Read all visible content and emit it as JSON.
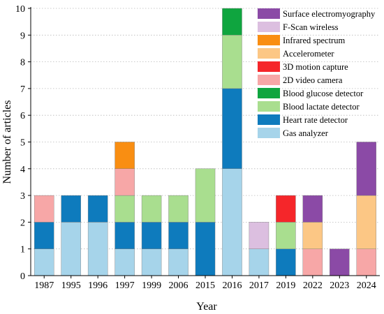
{
  "chart_data": {
    "type": "bar",
    "stacked": true,
    "xlabel": "Year",
    "ylabel": "Number of articles",
    "ylim": [
      0,
      10
    ],
    "yticks": [
      0,
      1,
      2,
      3,
      4,
      5,
      6,
      7,
      8,
      9,
      10
    ],
    "grid": "horizontal-dotted",
    "legend_position": "top-right",
    "categories": [
      "1987",
      "1995",
      "1996",
      "1997",
      "1999",
      "2006",
      "2015",
      "2016",
      "2017",
      "2019",
      "2022",
      "2023",
      "2024"
    ],
    "series": [
      {
        "name": "Gas analyzer",
        "color": "#A6D4EA",
        "values": [
          1,
          2,
          2,
          1,
          1,
          1,
          0,
          4,
          1,
          0,
          0,
          0,
          0
        ]
      },
      {
        "name": "Heart rate detector",
        "color": "#0E7BBD",
        "values": [
          1,
          1,
          1,
          1,
          1,
          1,
          2,
          3,
          0,
          1,
          0,
          0,
          0
        ]
      },
      {
        "name": "Blood lactate detector",
        "color": "#A9DE8F",
        "values": [
          0,
          0,
          0,
          1,
          1,
          1,
          2,
          2,
          0,
          1,
          0,
          0,
          0
        ]
      },
      {
        "name": "Blood glucose detector",
        "color": "#0FA53F",
        "values": [
          0,
          0,
          0,
          0,
          0,
          0,
          0,
          1,
          0,
          0,
          0,
          0,
          0
        ]
      },
      {
        "name": "2D video camera",
        "color": "#F7A7A7",
        "values": [
          1,
          0,
          0,
          1,
          0,
          0,
          0,
          0,
          0,
          0,
          1,
          0,
          1
        ]
      },
      {
        "name": "3D motion capture",
        "color": "#F5262A",
        "values": [
          0,
          0,
          0,
          0,
          0,
          0,
          0,
          0,
          0,
          1,
          0,
          0,
          0
        ]
      },
      {
        "name": "Accelerometer",
        "color": "#FCC785",
        "values": [
          0,
          0,
          0,
          0,
          0,
          0,
          0,
          0,
          0,
          0,
          1,
          0,
          2
        ]
      },
      {
        "name": "Infrared spectrum",
        "color": "#F98E12",
        "values": [
          0,
          0,
          0,
          1,
          0,
          0,
          0,
          0,
          0,
          0,
          0,
          0,
          0
        ]
      },
      {
        "name": "F-Scan wireless",
        "color": "#DCBFE0",
        "values": [
          0,
          0,
          0,
          0,
          0,
          0,
          0,
          0,
          1,
          0,
          0,
          0,
          0
        ]
      },
      {
        "name": "Surface electromyography",
        "color": "#8B4AA6",
        "values": [
          0,
          0,
          0,
          0,
          0,
          0,
          0,
          0,
          0,
          0,
          1,
          1,
          2
        ]
      }
    ]
  }
}
